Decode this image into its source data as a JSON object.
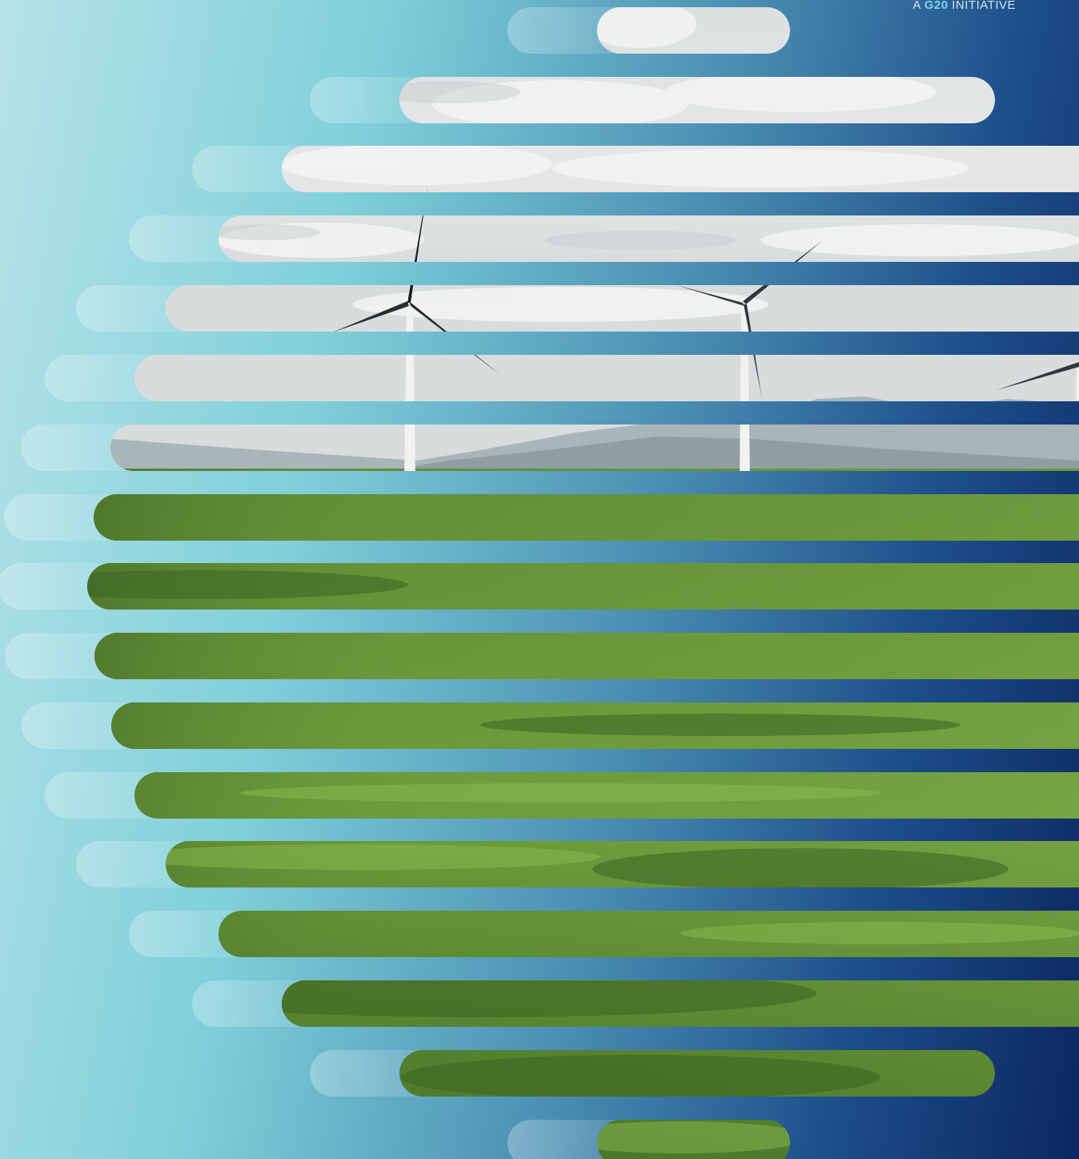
{
  "tagline": {
    "prefix": "A",
    "highlight": "G20",
    "suffix": "INITIATIVE"
  },
  "colors": {
    "gradient_light": "#b6e3e8",
    "gradient_mid": "#4a8fb3",
    "gradient_dark": "#0b2660",
    "g20_accent": "#7fd3e6",
    "sky": "#e4e8e8",
    "grass": "#5f8f32",
    "turbine": "#f2f2f0"
  },
  "illustration": {
    "subject": "wind-turbines-on-green-hills",
    "style": "horizontal-capsule-slices"
  }
}
